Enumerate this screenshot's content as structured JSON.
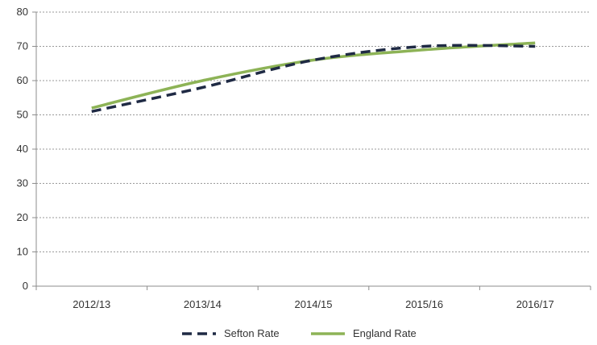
{
  "chart_data": {
    "type": "line",
    "title": "",
    "xlabel": "",
    "ylabel": "",
    "categories": [
      "2012/13",
      "2013/14",
      "2014/15",
      "2015/16",
      "2016/17"
    ],
    "ylim": [
      0,
      80
    ],
    "yticks": [
      0,
      10,
      20,
      30,
      40,
      50,
      60,
      70,
      80
    ],
    "grid": true,
    "legend_position": "bottom",
    "series": [
      {
        "name": "Sefton Rate",
        "values": [
          51,
          58,
          66,
          70,
          70
        ],
        "color": "#1f2a44",
        "style": "dashed"
      },
      {
        "name": "England Rate",
        "values": [
          52,
          60,
          66,
          69,
          71
        ],
        "color": "#8db356",
        "style": "solid"
      }
    ]
  }
}
